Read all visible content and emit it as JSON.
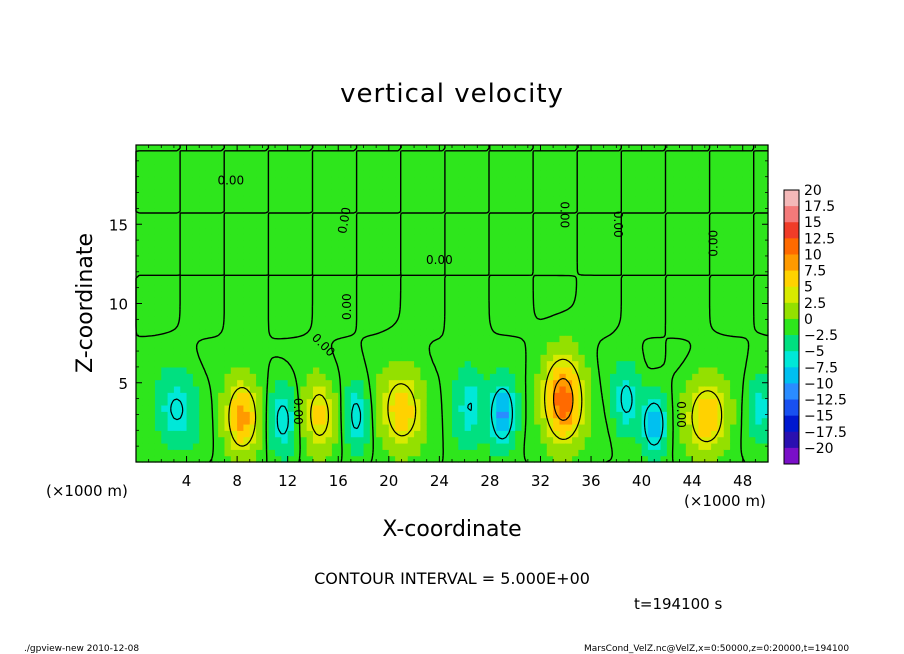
{
  "chart_data": {
    "type": "heatmap",
    "title": "vertical velocity",
    "xlabel": "X-coordinate",
    "ylabel": "Z-coordinate",
    "x_unit": "(×1000 m)",
    "x_unit_right": "(×1000 m)",
    "xlim": [
      0,
      50
    ],
    "ylim": [
      0,
      20
    ],
    "x_ticks": [
      4,
      8,
      12,
      16,
      20,
      24,
      28,
      32,
      36,
      40,
      44,
      48
    ],
    "y_ticks": [
      5,
      10,
      15
    ],
    "contour_interval_text": "CONTOUR INTERVAL = 5.000E+00",
    "time_text": "t=194100 s",
    "zero_labels": [
      "0.00",
      "0.00",
      "0.00",
      "0.00",
      "0.00",
      "0.00",
      "0.00",
      "0.00",
      "0.00",
      "0.00"
    ],
    "colorbar": {
      "levels": [
        "20",
        "17.5",
        "15",
        "12.5",
        "10",
        "7.5",
        "5",
        "2.5",
        "0",
        "−2.5",
        "−5",
        "−7.5",
        "−10",
        "−12.5",
        "−15",
        "−17.5",
        "−20"
      ],
      "colors": [
        "#f4b8b8",
        "#f47a7a",
        "#f03c28",
        "#ff6a00",
        "#ff9a00",
        "#ffd200",
        "#d8ea00",
        "#94e000",
        "#2ee61c",
        "#00e080",
        "#00e8d8",
        "#00c0f0",
        "#2a8cff",
        "#1850f0",
        "#0018d0",
        "#2a10b0",
        "#7a10c8"
      ]
    },
    "cells": [
      {
        "x": 8.4,
        "z": 2.9,
        "amp": 9.5,
        "sx": 1.3,
        "sz": 2.3
      },
      {
        "x": 14.5,
        "z": 3.0,
        "amp": 7.0,
        "sx": 1.2,
        "sz": 2.2
      },
      {
        "x": 21.0,
        "z": 3.3,
        "amp": 8.0,
        "sx": 1.6,
        "sz": 2.4
      },
      {
        "x": 33.8,
        "z": 3.9,
        "amp": 13.0,
        "sx": 1.5,
        "sz": 2.6
      },
      {
        "x": 45.2,
        "z": 2.9,
        "amp": 8.5,
        "sx": 1.6,
        "sz": 2.2
      },
      {
        "x": 3.2,
        "z": 3.3,
        "amp": -5.5,
        "sx": 1.6,
        "sz": 2.2
      },
      {
        "x": 11.6,
        "z": 2.7,
        "amp": -6.0,
        "sx": 1.0,
        "sz": 2.0
      },
      {
        "x": 17.4,
        "z": 2.9,
        "amp": -6.0,
        "sx": 0.9,
        "sz": 2.0
      },
      {
        "x": 26.4,
        "z": 3.6,
        "amp": -5.0,
        "sx": 1.2,
        "sz": 2.4
      },
      {
        "x": 29.0,
        "z": 3.0,
        "amp": -9.5,
        "sx": 1.0,
        "sz": 2.0
      },
      {
        "x": 38.8,
        "z": 4.0,
        "amp": -6.0,
        "sx": 1.0,
        "sz": 2.0
      },
      {
        "x": 41.0,
        "z": 2.4,
        "amp": -9.0,
        "sx": 0.9,
        "sz": 1.7
      },
      {
        "x": 49.4,
        "z": 3.3,
        "amp": -5.0,
        "sx": 0.9,
        "sz": 2.0
      }
    ]
  },
  "footer": {
    "left": "./gpview-new  2010-12-08",
    "right": "MarsCond_VelZ.nc@VelZ,x=0:50000,z=0:20000,t=194100"
  }
}
